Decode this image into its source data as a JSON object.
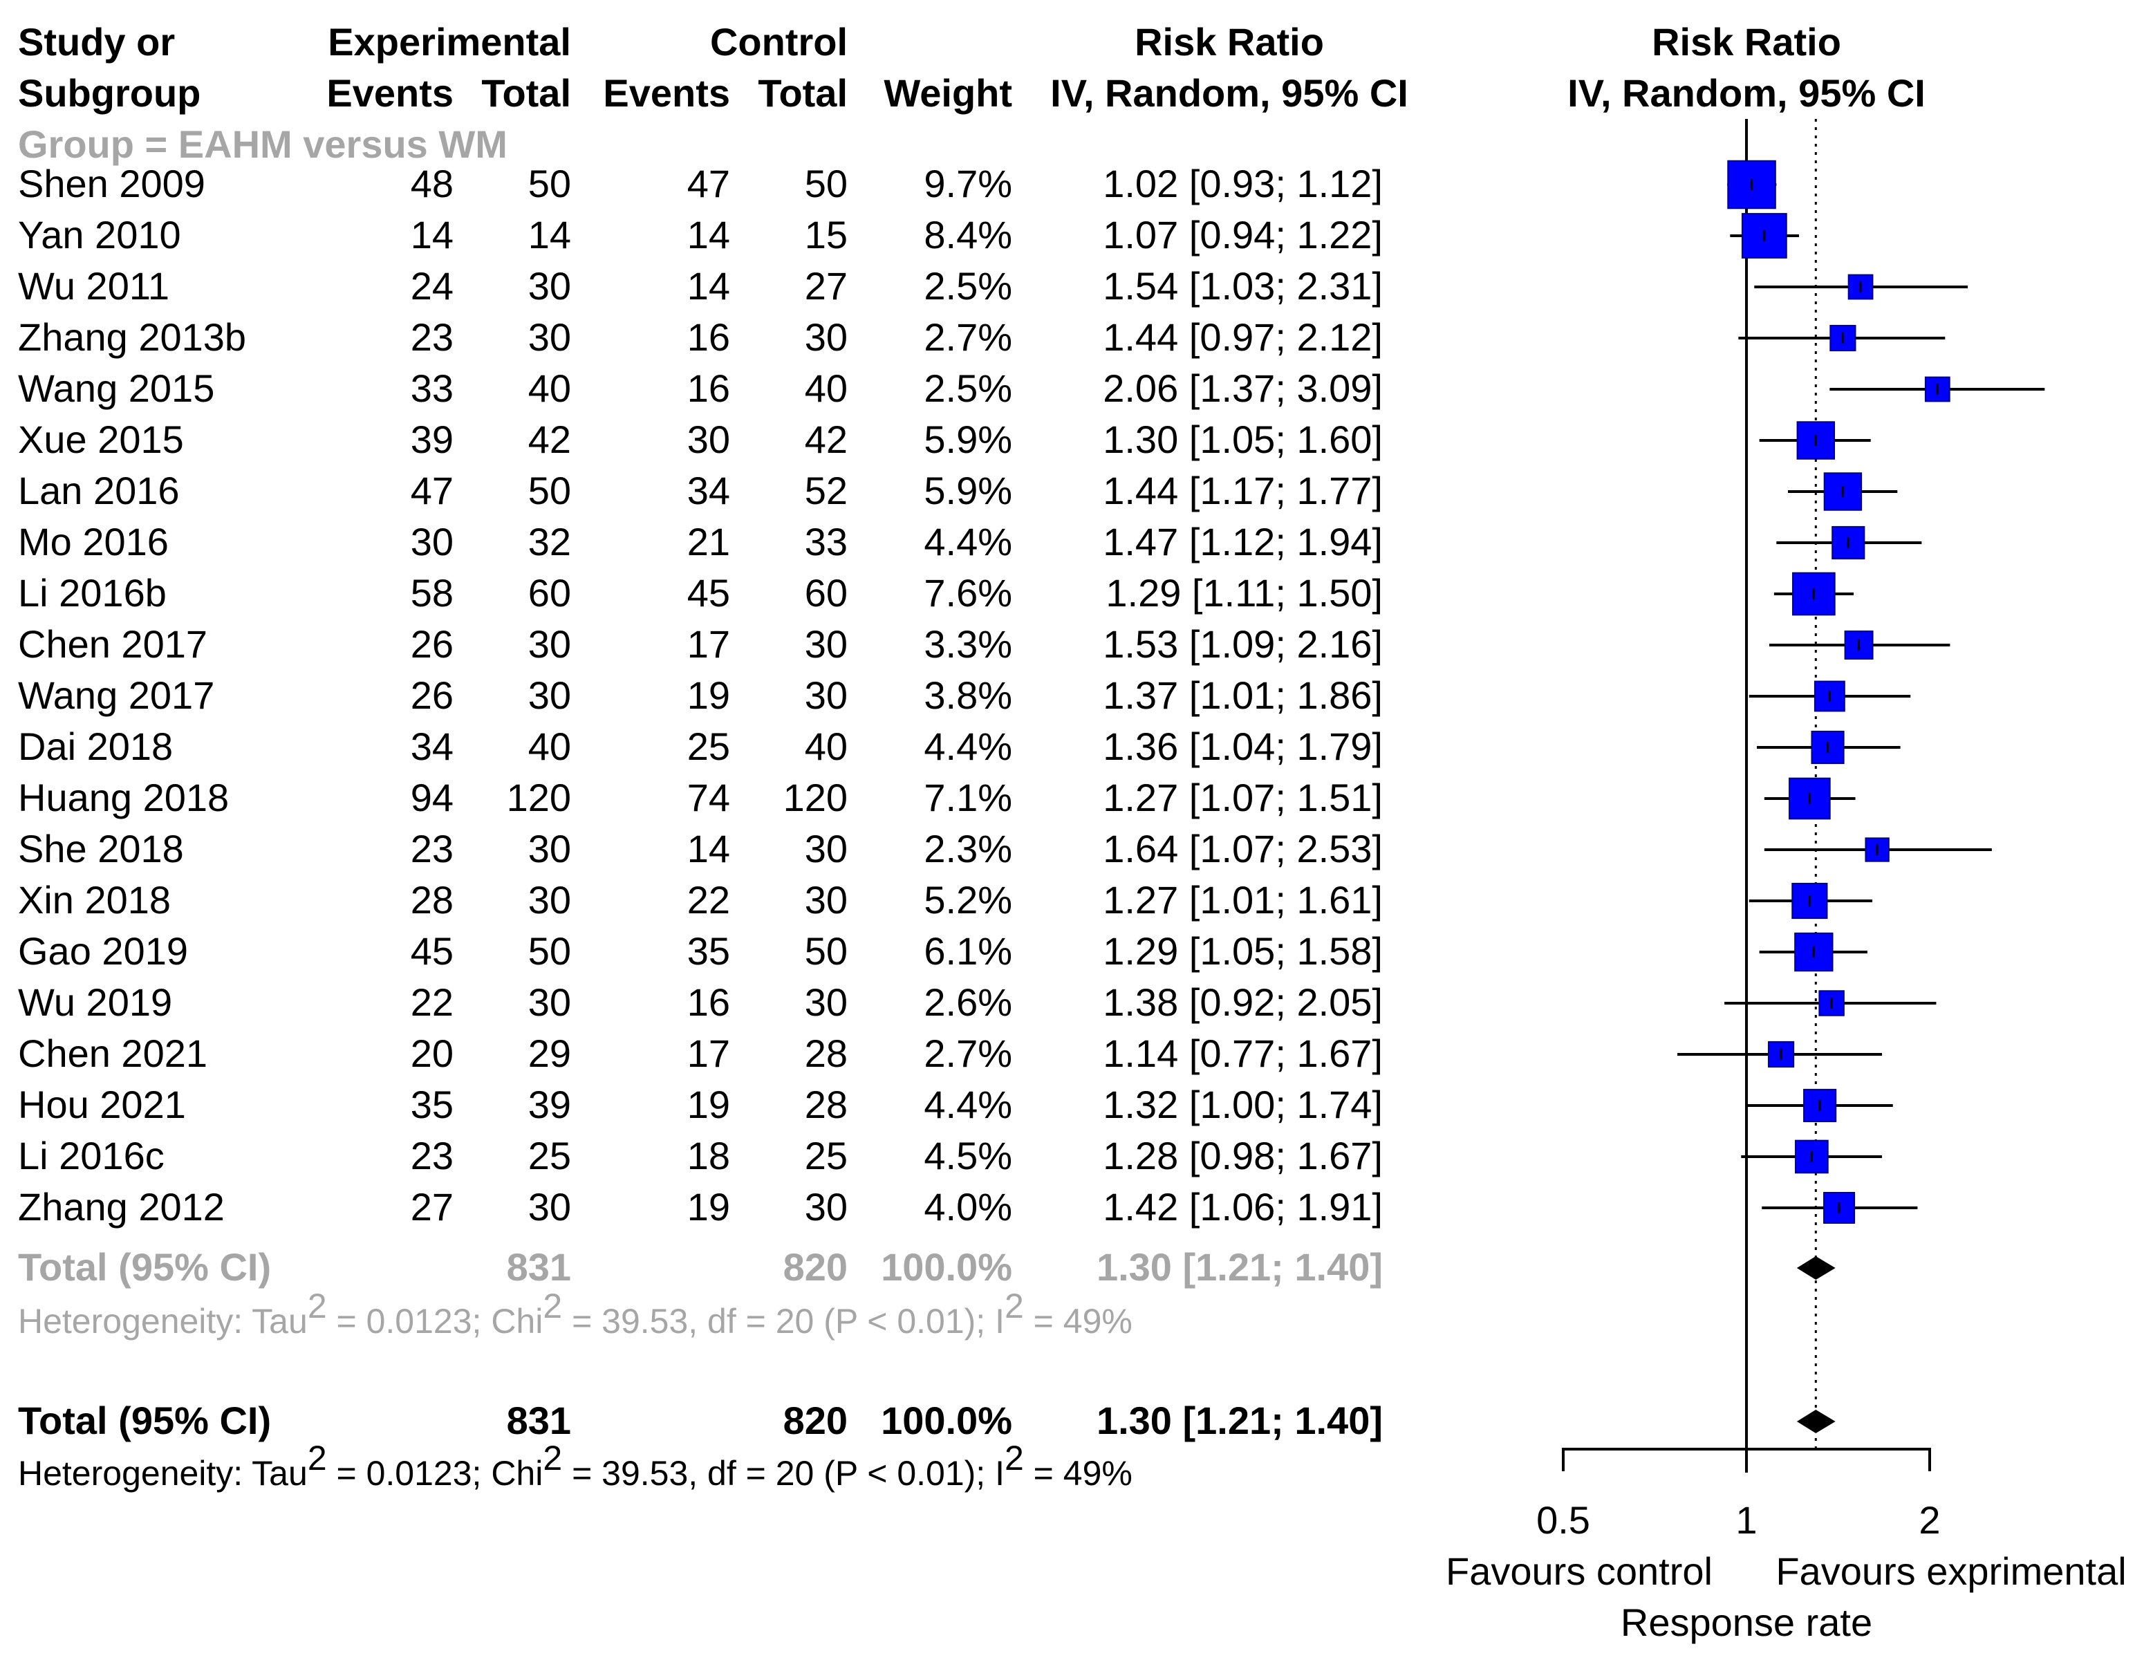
{
  "chart_data": {
    "type": "forest",
    "header": {
      "study_line1": "Study or",
      "study_line2": "Subgroup",
      "exp_group": "Experimental",
      "ctl_group": "Control",
      "events": "Events",
      "total": "Total",
      "weight": "Weight",
      "rr_title": "Risk Ratio",
      "rr_method": "IV, Random, 95% CI"
    },
    "subgroup_label": "Group = EAHM versus WM",
    "studies": [
      {
        "study": "Shen  2009",
        "exp_events": "48",
        "exp_total": "50",
        "ctl_events": "47",
        "ctl_total": "50",
        "weight": "9.7%",
        "ci_text": "1.02 [0.93; 1.12]",
        "rr": 1.02,
        "lo": 0.93,
        "hi": 1.12,
        "w": 9.7
      },
      {
        "study": "Yan  2010",
        "exp_events": "14",
        "exp_total": "14",
        "ctl_events": "14",
        "ctl_total": "15",
        "weight": "8.4%",
        "ci_text": "1.07 [0.94; 1.22]",
        "rr": 1.07,
        "lo": 0.94,
        "hi": 1.22,
        "w": 8.4
      },
      {
        "study": "Wu  2011",
        "exp_events": "24",
        "exp_total": "30",
        "ctl_events": "14",
        "ctl_total": "27",
        "weight": "2.5%",
        "ci_text": "1.54 [1.03; 2.31]",
        "rr": 1.54,
        "lo": 1.03,
        "hi": 2.31,
        "w": 2.5
      },
      {
        "study": "Zhang 2013b",
        "exp_events": "23",
        "exp_total": "30",
        "ctl_events": "16",
        "ctl_total": "30",
        "weight": "2.7%",
        "ci_text": "1.44 [0.97; 2.12]",
        "rr": 1.44,
        "lo": 0.97,
        "hi": 2.12,
        "w": 2.7
      },
      {
        "study": "Wang  2015",
        "exp_events": "33",
        "exp_total": "40",
        "ctl_events": "16",
        "ctl_total": "40",
        "weight": "2.5%",
        "ci_text": "2.06 [1.37; 3.09]",
        "rr": 2.06,
        "lo": 1.37,
        "hi": 3.09,
        "w": 2.5
      },
      {
        "study": "Xue 2015",
        "exp_events": "39",
        "exp_total": "42",
        "ctl_events": "30",
        "ctl_total": "42",
        "weight": "5.9%",
        "ci_text": "1.30 [1.05; 1.60]",
        "rr": 1.3,
        "lo": 1.05,
        "hi": 1.6,
        "w": 5.9
      },
      {
        "study": "Lan  2016",
        "exp_events": "47",
        "exp_total": "50",
        "ctl_events": "34",
        "ctl_total": "52",
        "weight": "5.9%",
        "ci_text": "1.44 [1.17; 1.77]",
        "rr": 1.44,
        "lo": 1.17,
        "hi": 1.77,
        "w": 5.9
      },
      {
        "study": "Mo  2016",
        "exp_events": "30",
        "exp_total": "32",
        "ctl_events": "21",
        "ctl_total": "33",
        "weight": "4.4%",
        "ci_text": "1.47 [1.12; 1.94]",
        "rr": 1.47,
        "lo": 1.12,
        "hi": 1.94,
        "w": 4.4
      },
      {
        "study": "Li 2016b",
        "exp_events": "58",
        "exp_total": "60",
        "ctl_events": "45",
        "ctl_total": "60",
        "weight": "7.6%",
        "ci_text": "1.29 [1.11; 1.50]",
        "rr": 1.29,
        "lo": 1.11,
        "hi": 1.5,
        "w": 7.6
      },
      {
        "study": "Chen  2017",
        "exp_events": "26",
        "exp_total": "30",
        "ctl_events": "17",
        "ctl_total": "30",
        "weight": "3.3%",
        "ci_text": "1.53 [1.09; 2.16]",
        "rr": 1.53,
        "lo": 1.09,
        "hi": 2.16,
        "w": 3.3
      },
      {
        "study": "Wang  2017",
        "exp_events": "26",
        "exp_total": "30",
        "ctl_events": "19",
        "ctl_total": "30",
        "weight": "3.8%",
        "ci_text": "1.37 [1.01; 1.86]",
        "rr": 1.37,
        "lo": 1.01,
        "hi": 1.86,
        "w": 3.8
      },
      {
        "study": "Dai  2018",
        "exp_events": "34",
        "exp_total": "40",
        "ctl_events": "25",
        "ctl_total": "40",
        "weight": "4.4%",
        "ci_text": "1.36 [1.04; 1.79]",
        "rr": 1.36,
        "lo": 1.04,
        "hi": 1.79,
        "w": 4.4
      },
      {
        "study": "Huang  2018",
        "exp_events": "94",
        "exp_total": "120",
        "ctl_events": "74",
        "ctl_total": "120",
        "weight": "7.1%",
        "ci_text": "1.27 [1.07; 1.51]",
        "rr": 1.27,
        "lo": 1.07,
        "hi": 1.51,
        "w": 7.1
      },
      {
        "study": "She 2018",
        "exp_events": "23",
        "exp_total": "30",
        "ctl_events": "14",
        "ctl_total": "30",
        "weight": "2.3%",
        "ci_text": "1.64 [1.07; 2.53]",
        "rr": 1.64,
        "lo": 1.07,
        "hi": 2.53,
        "w": 2.3
      },
      {
        "study": "Xin  2018",
        "exp_events": "28",
        "exp_total": "30",
        "ctl_events": "22",
        "ctl_total": "30",
        "weight": "5.2%",
        "ci_text": "1.27 [1.01; 1.61]",
        "rr": 1.27,
        "lo": 1.01,
        "hi": 1.61,
        "w": 5.2
      },
      {
        "study": "Gao  2019",
        "exp_events": "45",
        "exp_total": "50",
        "ctl_events": "35",
        "ctl_total": "50",
        "weight": "6.1%",
        "ci_text": "1.29 [1.05; 1.58]",
        "rr": 1.29,
        "lo": 1.05,
        "hi": 1.58,
        "w": 6.1
      },
      {
        "study": "Wu  2019",
        "exp_events": "22",
        "exp_total": "30",
        "ctl_events": "16",
        "ctl_total": "30",
        "weight": "2.6%",
        "ci_text": "1.38 [0.92; 2.05]",
        "rr": 1.38,
        "lo": 0.92,
        "hi": 2.05,
        "w": 2.6
      },
      {
        "study": "Chen  2021",
        "exp_events": "20",
        "exp_total": "29",
        "ctl_events": "17",
        "ctl_total": "28",
        "weight": "2.7%",
        "ci_text": "1.14 [0.77; 1.67]",
        "rr": 1.14,
        "lo": 0.77,
        "hi": 1.67,
        "w": 2.7
      },
      {
        "study": "Hou  2021",
        "exp_events": "35",
        "exp_total": "39",
        "ctl_events": "19",
        "ctl_total": "28",
        "weight": "4.4%",
        "ci_text": "1.32 [1.00; 1.74]",
        "rr": 1.32,
        "lo": 1.0,
        "hi": 1.74,
        "w": 4.4
      },
      {
        "study": "Li  2016c",
        "exp_events": "23",
        "exp_total": "25",
        "ctl_events": "18",
        "ctl_total": "25",
        "weight": "4.5%",
        "ci_text": "1.28 [0.98; 1.67]",
        "rr": 1.28,
        "lo": 0.98,
        "hi": 1.67,
        "w": 4.5
      },
      {
        "study": "Zhang 2012",
        "exp_events": "27",
        "exp_total": "30",
        "ctl_events": "19",
        "ctl_total": "30",
        "weight": "4.0%",
        "ci_text": "1.42 [1.06; 1.91]",
        "rr": 1.42,
        "lo": 1.06,
        "hi": 1.91,
        "w": 4.0
      }
    ],
    "subgroup_total": {
      "label": "Total (95% CI)",
      "exp_total": "831",
      "ctl_total": "820",
      "weight": "100.0%",
      "ci_text": "1.30 [1.21; 1.40]",
      "rr": 1.3,
      "lo": 1.21,
      "hi": 1.4
    },
    "subgroup_heterogeneity": {
      "p1": "Heterogeneity: Tau",
      "sup1": "2",
      "p2": " = 0.0123; Chi",
      "sup2": "2",
      "p3": " = 39.53, df = 20 (P < 0.01); I",
      "sup3": "2",
      "p4": " = 49%"
    },
    "overall_total": {
      "label": "Total (95% CI)",
      "exp_total": "831",
      "ctl_total": "820",
      "weight": "100.0%",
      "ci_text": "1.30 [1.21; 1.40]",
      "rr": 1.3,
      "lo": 1.21,
      "hi": 1.4
    },
    "overall_heterogeneity": {
      "p1": "Heterogeneity: Tau",
      "sup1": "2",
      "p2": " = 0.0123; Chi",
      "sup2": "2",
      "p3": " = 39.53, df = 20 (P < 0.01); I",
      "sup3": "2",
      "p4": " = 49%"
    },
    "axis": {
      "scale": "log",
      "range": [
        0.5,
        2
      ],
      "ticks": [
        {
          "value": 0.5,
          "label": "0.5"
        },
        {
          "value": 1,
          "label": "1"
        },
        {
          "value": 2,
          "label": "2"
        }
      ],
      "null_value": 1,
      "reference_line_value": 1.3,
      "left_label": "Favours control",
      "right_label": "Favours exprimental",
      "xlabel": "Response rate"
    },
    "colors": {
      "box_fill": "#0000ff",
      "box_stroke": "#00008b",
      "subgroup_text": "#a6a6a6",
      "line": "#000000"
    }
  }
}
